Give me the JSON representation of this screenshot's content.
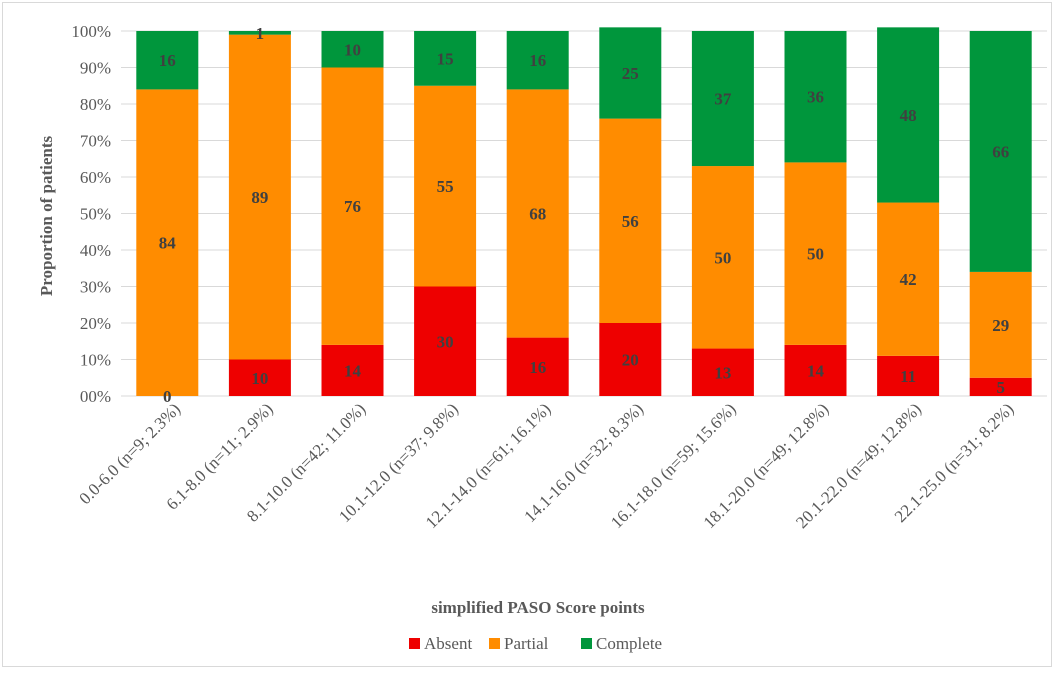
{
  "chart_data": {
    "type": "bar",
    "stacked": true,
    "categories": [
      "0.0-6.0  (n=9; 2.3%)",
      "6.1-8.0  (n=11; 2.9%)",
      "8.1-10.0  (n=42; 11.0%)",
      "10.1-12.0  (n=37; 9.8%)",
      "12.1-14.0  (n=61; 16.1%)",
      "14.1-16.0  (n=32; 8.3%)",
      "16.1-18.0  (n=59; 15.6%)",
      "18.1-20.0  (n=49; 12.8%)",
      "20.1-22.0  (n=49; 12.8%)",
      "22.1-25.0  (n=31; 8.2%)"
    ],
    "series": [
      {
        "name": "Absent",
        "color": "#ee0000",
        "values": [
          0,
          10,
          14,
          30,
          16,
          20,
          13,
          14,
          11,
          5
        ]
      },
      {
        "name": "Partial",
        "color": "#ff8c00",
        "values": [
          84,
          89,
          76,
          55,
          68,
          56,
          50,
          50,
          42,
          29
        ]
      },
      {
        "name": "Complete",
        "color": "#00963c",
        "values": [
          16,
          1,
          10,
          15,
          16,
          25,
          37,
          36,
          48,
          66
        ]
      }
    ],
    "ylabel": "Proportion of patients",
    "xlabel": "simplified PASO Score points",
    "yticks": [
      "00%",
      "10%",
      "20%",
      "30%",
      "40%",
      "50%",
      "60%",
      "70%",
      "80%",
      "90%",
      "100%"
    ],
    "ylim": [
      0,
      100
    ],
    "grid": true,
    "legend": "bottom"
  }
}
